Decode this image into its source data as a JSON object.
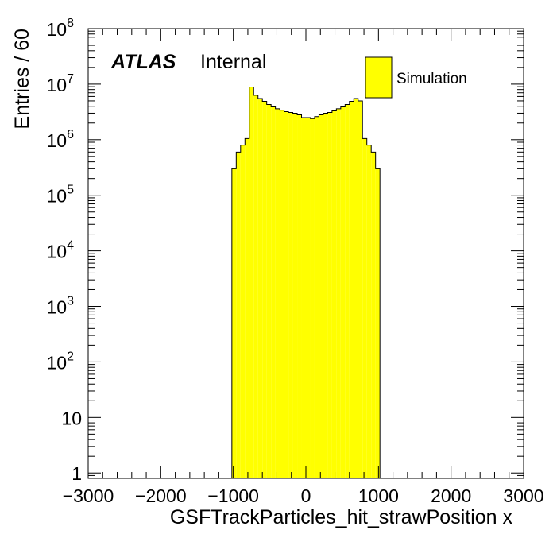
{
  "chart_data": {
    "type": "histogram",
    "xlabel": "GSFTrackParticles_hit_strawPosition x",
    "ylabel": "Entries / 60",
    "xlim": [
      -3000,
      3000
    ],
    "ylim": [
      0.8,
      100000000
    ],
    "y_scale": "log",
    "bin_width": 60,
    "x_ticks": [
      -3000,
      -2000,
      -1000,
      0,
      1000,
      2000,
      3000
    ],
    "x_tick_labels": [
      "−3000",
      "−2000",
      "−1000",
      "0",
      "1000",
      "2000",
      "3000"
    ],
    "y_ticks": [
      {
        "value": 1,
        "base": "1",
        "exp": ""
      },
      {
        "value": 10,
        "base": "10",
        "exp": ""
      },
      {
        "value": 100,
        "base": "10",
        "exp": "2"
      },
      {
        "value": 1000,
        "base": "10",
        "exp": "3"
      },
      {
        "value": 10000,
        "base": "10",
        "exp": "4"
      },
      {
        "value": 100000,
        "base": "10",
        "exp": "5"
      },
      {
        "value": 1000000,
        "base": "10",
        "exp": "6"
      },
      {
        "value": 10000000,
        "base": "10",
        "exp": "7"
      },
      {
        "value": 100000000,
        "base": "10",
        "exp": "8"
      }
    ],
    "bins": [
      {
        "x_low": -1020,
        "x_high": -960,
        "count": 300000
      },
      {
        "x_low": -960,
        "x_high": -900,
        "count": 600000
      },
      {
        "x_low": -900,
        "x_high": -840,
        "count": 800000
      },
      {
        "x_low": -840,
        "x_high": -780,
        "count": 1050000
      },
      {
        "x_low": -780,
        "x_high": -720,
        "count": 8900000
      },
      {
        "x_low": -720,
        "x_high": -660,
        "count": 6300000
      },
      {
        "x_low": -660,
        "x_high": -600,
        "count": 5500000
      },
      {
        "x_low": -600,
        "x_high": -540,
        "count": 4900000
      },
      {
        "x_low": -540,
        "x_high": -480,
        "count": 4300000
      },
      {
        "x_low": -480,
        "x_high": -420,
        "count": 3900000
      },
      {
        "x_low": -420,
        "x_high": -360,
        "count": 3600000
      },
      {
        "x_low": -360,
        "x_high": -300,
        "count": 3400000
      },
      {
        "x_low": -300,
        "x_high": -240,
        "count": 3200000
      },
      {
        "x_low": -240,
        "x_high": -180,
        "count": 3100000
      },
      {
        "x_low": -180,
        "x_high": -120,
        "count": 3000000
      },
      {
        "x_low": -120,
        "x_high": -60,
        "count": 2800000
      },
      {
        "x_low": -60,
        "x_high": 0,
        "count": 2500000
      },
      {
        "x_low": 0,
        "x_high": 60,
        "count": 2500000
      },
      {
        "x_low": 60,
        "x_high": 120,
        "count": 2400000
      },
      {
        "x_low": 120,
        "x_high": 180,
        "count": 2600000
      },
      {
        "x_low": 180,
        "x_high": 240,
        "count": 2800000
      },
      {
        "x_low": 240,
        "x_high": 300,
        "count": 3000000
      },
      {
        "x_low": 300,
        "x_high": 360,
        "count": 3100000
      },
      {
        "x_low": 360,
        "x_high": 420,
        "count": 3300000
      },
      {
        "x_low": 420,
        "x_high": 480,
        "count": 3600000
      },
      {
        "x_low": 480,
        "x_high": 540,
        "count": 3900000
      },
      {
        "x_low": 540,
        "x_high": 600,
        "count": 4300000
      },
      {
        "x_low": 600,
        "x_high": 660,
        "count": 4900000
      },
      {
        "x_low": 660,
        "x_high": 720,
        "count": 5500000
      },
      {
        "x_low": 720,
        "x_high": 780,
        "count": 5000000
      },
      {
        "x_low": 780,
        "x_high": 840,
        "count": 1050000
      },
      {
        "x_low": 840,
        "x_high": 900,
        "count": 800000
      },
      {
        "x_low": 900,
        "x_high": 960,
        "count": 600000
      },
      {
        "x_low": 960,
        "x_high": 1020,
        "count": 300000
      }
    ],
    "fill_color": "#ffff00",
    "line_color": "#000000",
    "legend": {
      "entries": [
        {
          "label": "Simulation",
          "color": "#ffff00"
        }
      ],
      "position": "top-right"
    },
    "annotations": {
      "experiment": "ATLAS",
      "status": "Internal"
    },
    "grid": false
  }
}
